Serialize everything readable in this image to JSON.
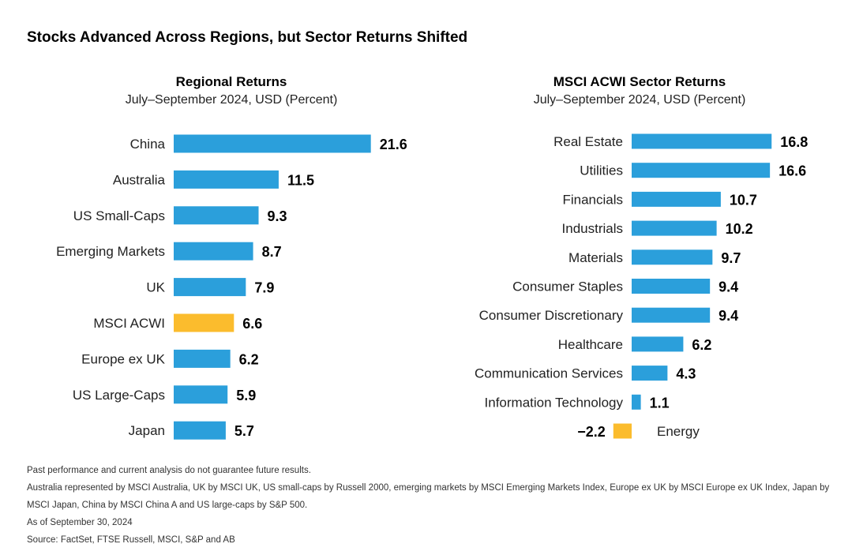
{
  "header": {
    "title": "Stocks Advanced Across Regions, but Sector Returns Shifted"
  },
  "colors": {
    "bar": "#2b9fdb",
    "highlight": "#fbbc2d"
  },
  "chart_data": [
    {
      "type": "bar",
      "orientation": "horizontal",
      "title": "Regional Returns",
      "subtitle": "July–September 2024, USD (Percent)",
      "categories": [
        "China",
        "Australia",
        "US Small-Caps",
        "Emerging Markets",
        "UK",
        "MSCI ACWI",
        "Europe ex UK",
        "US Large-Caps",
        "Japan"
      ],
      "values": [
        21.6,
        11.5,
        9.3,
        8.7,
        7.9,
        6.6,
        6.2,
        5.9,
        5.7
      ],
      "value_labels": [
        "21.6",
        "11.5",
        "9.3",
        "8.7",
        "7.9",
        "6.6",
        "6.2",
        "5.9",
        "5.7"
      ],
      "highlight": [
        "MSCI ACWI"
      ],
      "grid": false
    },
    {
      "type": "bar",
      "orientation": "horizontal",
      "title": "MSCI ACWI Sector Returns",
      "subtitle": "July–September 2024, USD (Percent)",
      "categories": [
        "Real Estate",
        "Utilities",
        "Financials",
        "Industrials",
        "Materials",
        "Consumer Staples",
        "Consumer Discretionary",
        "Healthcare",
        "Communication Services",
        "Information Technology",
        "Energy"
      ],
      "values": [
        16.8,
        16.6,
        10.7,
        10.2,
        9.7,
        9.4,
        9.4,
        6.2,
        4.3,
        1.1,
        -2.2
      ],
      "value_labels": [
        "16.8",
        "16.6",
        "10.7",
        "10.2",
        "9.7",
        "9.4",
        "9.4",
        "6.2",
        "4.3",
        "1.1",
        "−2.2"
      ],
      "highlight": [
        "Energy"
      ],
      "grid": false
    }
  ],
  "notes": {
    "disclaimer": "Past performance and current analysis do not guarantee future results.",
    "line1": "Australia represented by MSCI Australia, UK by MSCI UK, US small-caps by Russell 2000, emerging markets by MSCI Emerging Markets Index, Europe ex UK by MSCI Europe ex UK Index, Japan by",
    "line2": "MSCI Japan, China by MSCI China A and US large-caps by S&P 500.",
    "asof": "As of September 30, 2024",
    "source": "Source: FactSet, FTSE Russell, MSCI, S&P and AB"
  }
}
